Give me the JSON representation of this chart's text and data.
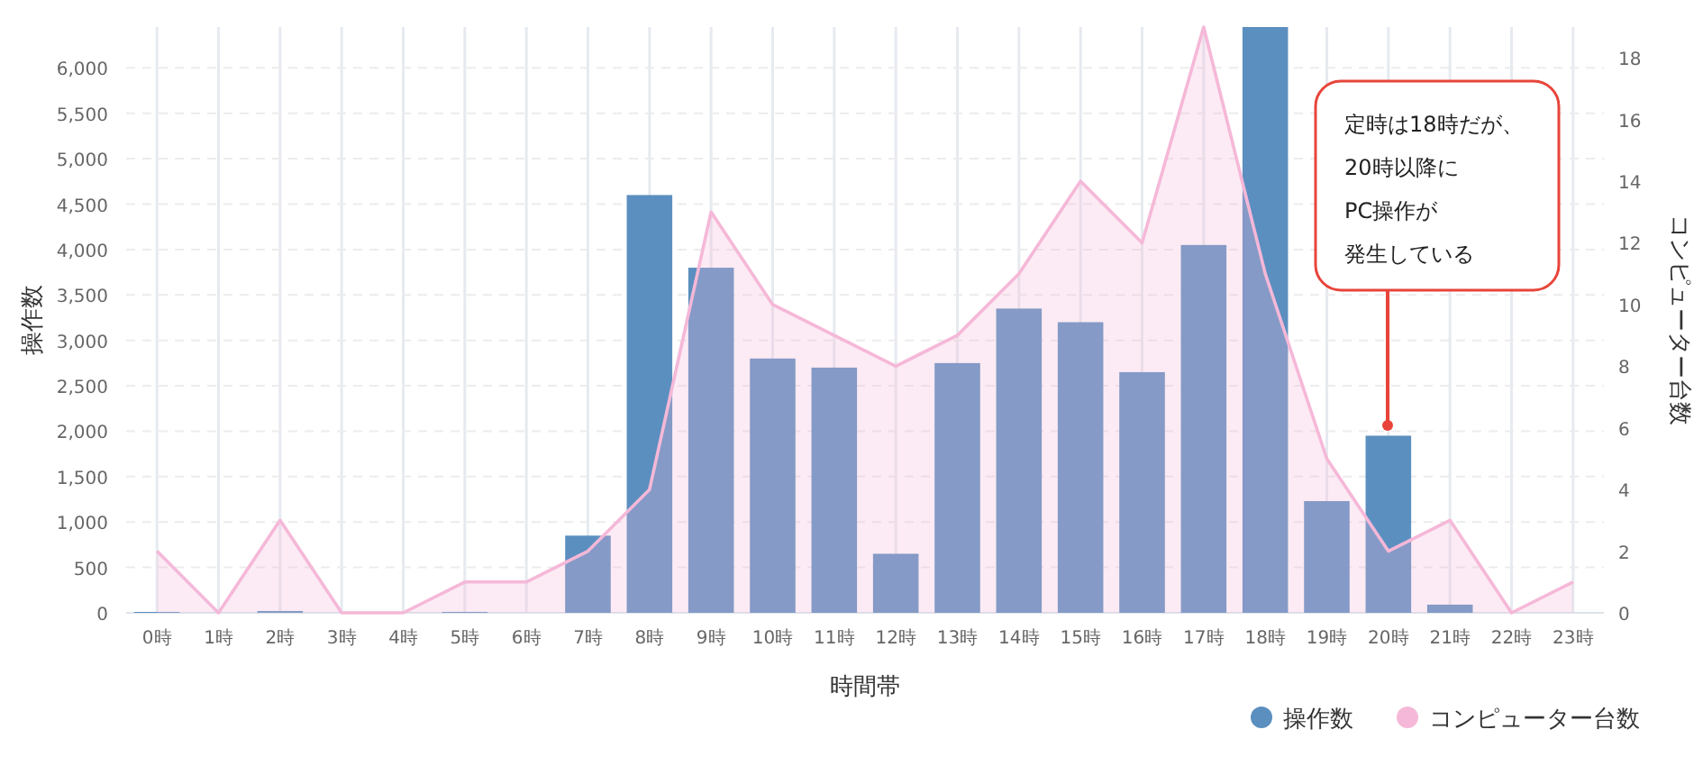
{
  "chart_data": {
    "type": "bar",
    "xlabel": "時間帯",
    "ylabel": "操作数",
    "y2label": "コンピューター台数",
    "categories": [
      "0時",
      "1時",
      "2時",
      "3時",
      "4時",
      "5時",
      "6時",
      "7時",
      "8時",
      "9時",
      "10時",
      "11時",
      "12時",
      "13時",
      "14時",
      "15時",
      "16時",
      "17時",
      "18時",
      "19時",
      "20時",
      "21時",
      "22時",
      "23時"
    ],
    "series": [
      {
        "name": "操作数",
        "color": "#5b8fbf",
        "values": [
          10,
          0,
          20,
          0,
          0,
          10,
          0,
          850,
          4600,
          3800,
          2800,
          2700,
          650,
          2750,
          3350,
          3200,
          2650,
          4050,
          6450,
          1230,
          1950,
          90,
          0,
          0
        ]
      },
      {
        "name": "コンピューター台数",
        "type": "area",
        "axis": "y2",
        "color": "#f5b8d8",
        "values": [
          2,
          0,
          3,
          0,
          0,
          1,
          1,
          2,
          4,
          13,
          10,
          9,
          8,
          9,
          11,
          14,
          12,
          19,
          11,
          5,
          2,
          3,
          0,
          1
        ]
      }
    ],
    "ylim": [
      0,
      6450
    ],
    "yticks": [
      0,
      {
        "value": 500,
        "label": "500"
      },
      {
        "value": 1000,
        "label": "1,000"
      },
      {
        "value": 1500,
        "label": "1,500"
      },
      {
        "value": 2000,
        "label": "2,000"
      },
      {
        "value": 2500,
        "label": "2,500"
      },
      {
        "value": 3000,
        "label": "3,000"
      },
      {
        "value": 3500,
        "label": "3,500"
      },
      {
        "value": 4000,
        "label": "4,000"
      },
      {
        "value": 4500,
        "label": "4,500"
      },
      {
        "value": 5000,
        "label": "5,000"
      },
      {
        "value": 5500,
        "label": "5,500"
      },
      {
        "value": 6000,
        "label": "6,000"
      }
    ],
    "y2lim": [
      0,
      19
    ],
    "y2ticks": [
      0,
      2,
      4,
      6,
      8,
      10,
      12,
      14,
      16,
      18
    ],
    "grid": true,
    "legend": "bottom right",
    "annotations": [
      "定時は18時だが、",
      "20時以降に",
      "PC操作が",
      "発生している"
    ]
  }
}
